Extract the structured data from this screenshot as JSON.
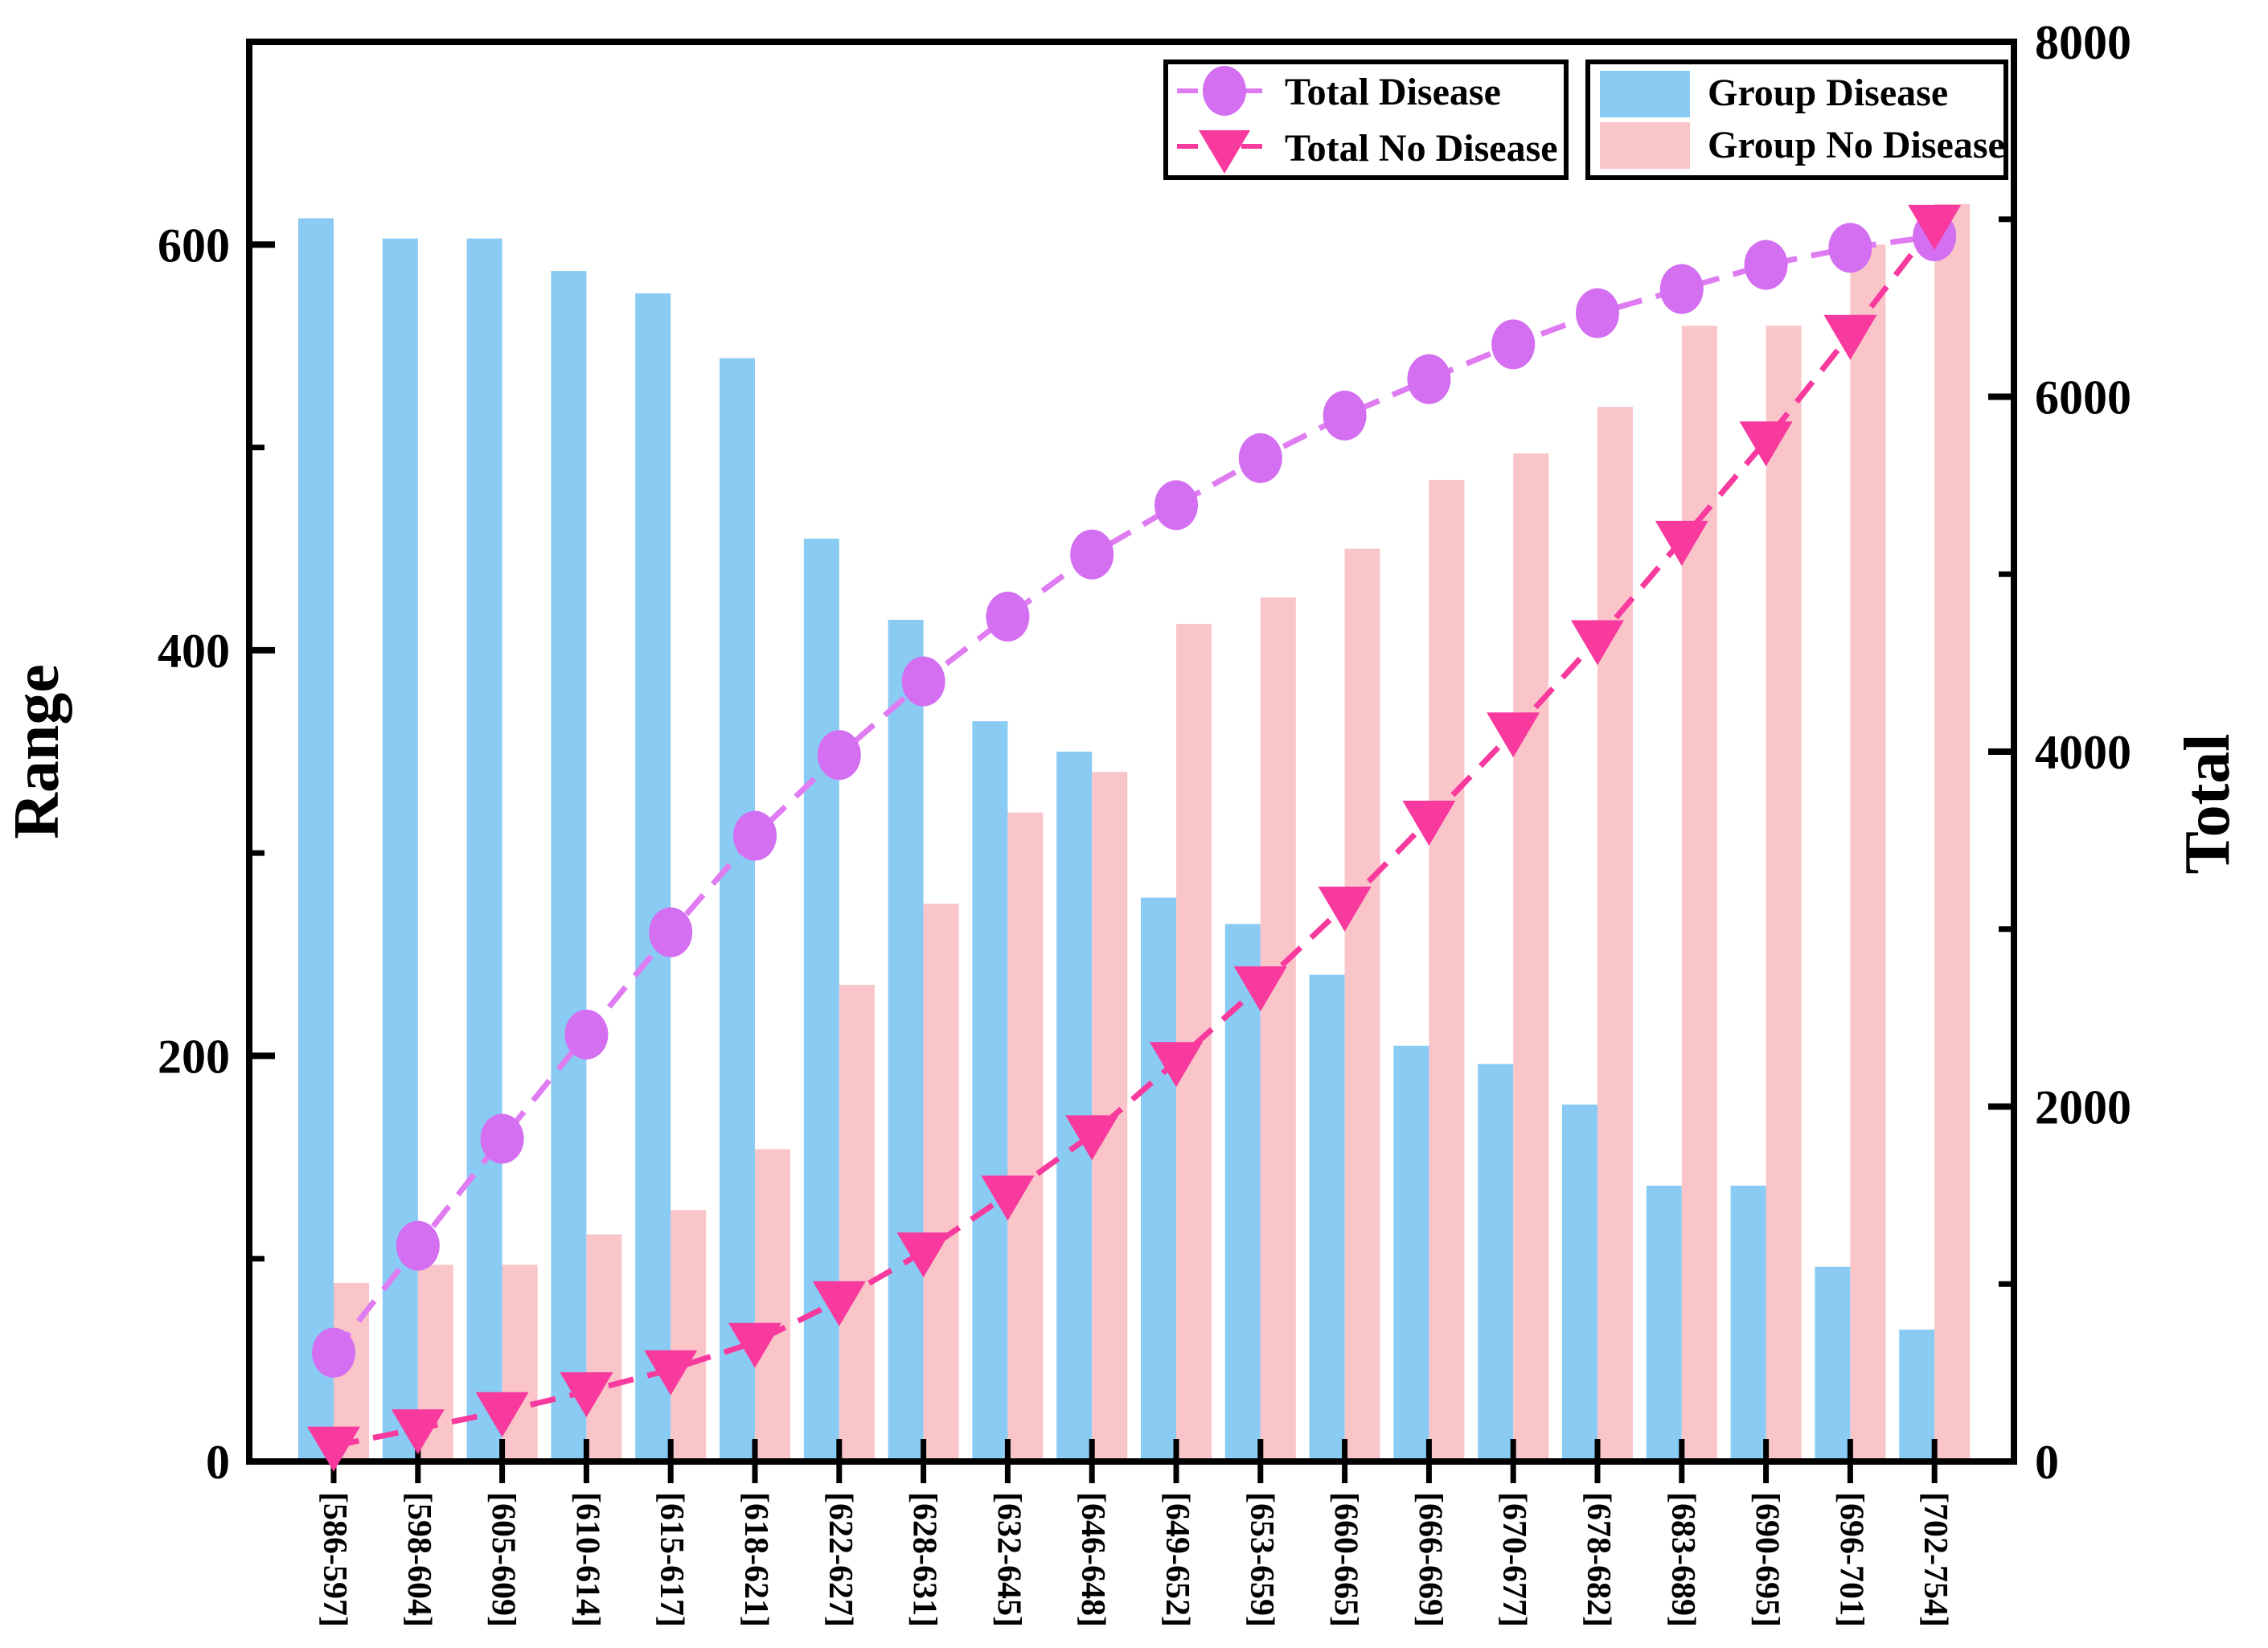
{
  "figure": {
    "background": "#ffffff",
    "axis_color": "#000000"
  },
  "left_axis": {
    "label": "Range",
    "major_ticks": [
      0,
      200,
      400,
      600
    ],
    "minor_ticks": [
      100,
      300,
      500
    ],
    "range": [
      0,
      700
    ]
  },
  "right_axis": {
    "label": "Total",
    "major_ticks": [
      0,
      2000,
      4000,
      6000,
      8000
    ],
    "minor_ticks": [
      1000,
      3000,
      5000,
      7000
    ],
    "range": [
      0,
      8000
    ]
  },
  "legend": {
    "lines": [
      {
        "label": "Total Disease",
        "marker": "circle-icon",
        "marker_color": "#d36ff0",
        "line_color": "#e07cf2"
      },
      {
        "label": "Total No Disease",
        "marker": "triangle-down-icon",
        "marker_color": "#f8399e",
        "line_color": "#f8399e"
      }
    ],
    "bars": [
      {
        "label": "Group Disease",
        "color": "#8acbf4"
      },
      {
        "label": "Group No Disease",
        "color": "#f9c5c9"
      }
    ]
  },
  "chart_data": {
    "type": "bar",
    "subtype": "grouped bars with cumulative overlay lines",
    "title": "",
    "xlabel": "",
    "ylabel": "Range",
    "ylabel_right": "Total",
    "ylim": [
      0,
      700
    ],
    "ylim_right": [
      0,
      8000
    ],
    "grid": false,
    "legend_position": "top-right",
    "categories": [
      "[586-597]",
      "[598-604]",
      "[605-609]",
      "[610-614]",
      "[615-617]",
      "[618-621]",
      "[622-627]",
      "[628-631]",
      "[632-645]",
      "[646-648]",
      "[649-652]",
      "[653-659]",
      "[660-665]",
      "[666-669]",
      "[670-677]",
      "[678-682]",
      "[683-689]",
      "[690-695]",
      "[696-701]",
      "[702-754]"
    ],
    "series": [
      {
        "name": "Group Disease",
        "type": "bar",
        "axis": "left",
        "color": "#8acbf4",
        "values": [
          613,
          603,
          603,
          587,
          576,
          544,
          455,
          415,
          365,
          350,
          278,
          265,
          240,
          205,
          196,
          176,
          136,
          136,
          96,
          65
        ]
      },
      {
        "name": "Group No Disease",
        "type": "bar",
        "axis": "left",
        "color": "#f9c5c9",
        "values": [
          88,
          97,
          97,
          112,
          124,
          154,
          235,
          275,
          320,
          340,
          413,
          426,
          450,
          484,
          497,
          520,
          560,
          560,
          600,
          620
        ]
      },
      {
        "name": "Total Disease",
        "type": "line",
        "axis": "right",
        "color": "#d36ff0",
        "line_color": "#e07cf2",
        "marker": "circle",
        "values": [
          613,
          1216,
          1819,
          2406,
          2982,
          3526,
          3981,
          4396,
          4761,
          5111,
          5389,
          5654,
          5894,
          6099,
          6295,
          6471,
          6607,
          6743,
          6839,
          6904
        ]
      },
      {
        "name": "Total No Disease",
        "type": "line",
        "axis": "right",
        "color": "#f8399e",
        "line_color": "#f8399e",
        "marker": "triangle-down",
        "values": [
          88,
          185,
          282,
          394,
          518,
          672,
          907,
          1182,
          1502,
          1842,
          2255,
          2681,
          3131,
          3615,
          4112,
          4632,
          5192,
          5752,
          6352,
          6972
        ]
      }
    ]
  }
}
